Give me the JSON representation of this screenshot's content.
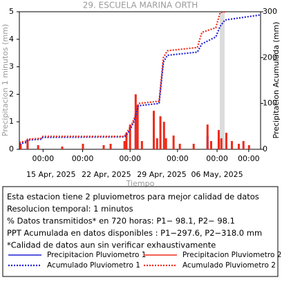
{
  "chart_data": {
    "type": "line",
    "title": "29. ESCUELA MARINA ORTH",
    "ylabel": "Precipitacion 1 minutos (mm)",
    "y2label": "Precipitacion Acumulada (mm)",
    "xlabel": "Tiempo",
    "xlim": [
      "2025-04-11T00:00",
      "2025-05-11T12:00"
    ],
    "xticks": [
      {
        "value": "2025-04-14T00:00",
        "label": "00:00"
      },
      {
        "value": "2025-04-19T00:00",
        "label": "00:00"
      },
      {
        "value": "2025-04-25T00:00",
        "label": "00:00"
      },
      {
        "value": "2025-05-01T00:00",
        "label": "00:00"
      },
      {
        "value": "2025-05-06T00:00",
        "label": "00:00"
      },
      {
        "value": "2025-05-10T00:00",
        "label": "00:00"
      }
    ],
    "xdates": [
      {
        "value": "2025-04-15T00:00",
        "label": "15 Apr, 2025"
      },
      {
        "value": "2025-04-22T00:00",
        "label": "22 Apr, 2025"
      },
      {
        "value": "2025-04-29T00:00",
        "label": "29 Apr, 2025"
      },
      {
        "value": "2025-05-06T00:00",
        "label": "06 May, 2025"
      }
    ],
    "ylim": [
      0,
      5
    ],
    "yticks": [
      0,
      1,
      2,
      3,
      4,
      5
    ],
    "y2lim": [
      0,
      300
    ],
    "y2ticks": [
      0,
      100,
      200,
      300
    ],
    "notes": [
      "Esta estacion tiene 2 pluviometros para mejor calidad de datos",
      "Resolucion temporal: 1 minutos",
      "% Datos transmitidos* en 720 horas: P1− 98.1, P2− 98.1",
      "PPT Acumulada en datos disponibles : P1−297.6, P2−318.0 mm",
      "*Calidad de datos aun sin verificar exhaustivamente"
    ],
    "series": [
      {
        "name": "Precipitacion Pluviometro 1",
        "color": "#1f1fd6",
        "kind": "bar",
        "x": [
          "2025-04-12T01:00",
          "2025-04-25T17:00",
          "2025-04-28T00:00",
          "2025-05-04T19:00",
          "2025-05-06T05:00"
        ],
        "values": [
          0.2,
          1.3,
          0.8,
          0.5,
          0.4
        ]
      },
      {
        "name": "Precipitacion Pluviometro 2",
        "color": "#ee2a1a",
        "kind": "bar",
        "x": [
          "2025-04-11T04:00",
          "2025-04-12T01:00",
          "2025-04-13T09:00",
          "2025-04-16T10:00",
          "2025-04-19T01:00",
          "2025-04-21T16:00",
          "2025-04-22T13:00",
          "2025-04-24T07:00",
          "2025-04-24T13:00",
          "2025-04-25T00:00",
          "2025-04-25T17:00",
          "2025-04-25T23:00",
          "2025-04-26T12:00",
          "2025-04-28T00:00",
          "2025-04-28T10:00",
          "2025-04-28T20:00",
          "2025-04-29T07:00",
          "2025-04-29T13:00",
          "2025-04-30T12:00",
          "2025-05-01T07:00",
          "2025-05-03T01:00",
          "2025-05-04T19:00",
          "2025-05-05T06:00",
          "2025-05-06T05:00",
          "2025-05-06T13:00",
          "2025-05-07T04:00",
          "2025-05-07T21:00",
          "2025-05-08T18:00",
          "2025-05-09T08:00",
          "2025-05-10T01:00"
        ],
        "values": [
          0.2,
          0.35,
          0.15,
          0.1,
          0.2,
          0.15,
          0.2,
          0.3,
          0.6,
          0.9,
          2.0,
          1.6,
          0.3,
          1.4,
          0.4,
          1.2,
          1.0,
          0.4,
          0.5,
          0.2,
          0.2,
          0.9,
          0.3,
          0.7,
          0.4,
          0.6,
          0.3,
          0.2,
          0.3,
          0.15
        ]
      },
      {
        "name": "Acumulado Pluviometro 1",
        "color": "#1f1fd6",
        "kind": "line",
        "dash": true,
        "axis": "y2",
        "x": [
          "2025-04-11T00:00",
          "2025-04-11T21:00",
          "2025-04-12T01:00",
          "2025-04-13T19:00",
          "2025-04-13T23:00",
          "2025-04-24T07:00",
          "2025-04-24T17:00",
          "2025-04-25T05:00",
          "2025-04-25T14:00",
          "2025-04-26T01:00",
          "2025-04-28T16:00",
          "2025-04-29T05:00",
          "2025-04-29T17:00",
          "2025-05-03T12:00",
          "2025-05-04T02:00",
          "2025-05-05T20:00",
          "2025-05-06T09:00",
          "2025-05-07T00:00",
          "2025-05-11T12:00"
        ],
        "values": [
          12,
          15,
          20,
          22,
          26,
          27,
          35,
          50,
          65,
          95,
          100,
          190,
          205,
          212,
          230,
          245,
          268,
          282,
          293
        ]
      },
      {
        "name": "Acumulado Pluviometro 2",
        "color": "#ee2a1a",
        "kind": "line",
        "dash": true,
        "axis": "y2",
        "x": [
          "2025-04-11T00:00",
          "2025-04-11T21:00",
          "2025-04-12T01:00",
          "2025-04-13T19:00",
          "2025-04-13T23:00",
          "2025-04-24T07:00",
          "2025-04-24T17:00",
          "2025-04-25T05:00",
          "2025-04-25T14:00",
          "2025-04-26T01:00",
          "2025-04-28T16:00",
          "2025-04-29T05:00",
          "2025-04-29T17:00",
          "2025-05-03T12:00",
          "2025-05-04T02:00",
          "2025-05-05T20:00",
          "2025-05-06T09:00",
          "2025-05-07T00:00"
        ],
        "values": [
          15,
          18,
          22,
          24,
          28,
          28,
          40,
          55,
          70,
          100,
          105,
          200,
          215,
          222,
          255,
          265,
          298,
          300
        ]
      }
    ]
  }
}
